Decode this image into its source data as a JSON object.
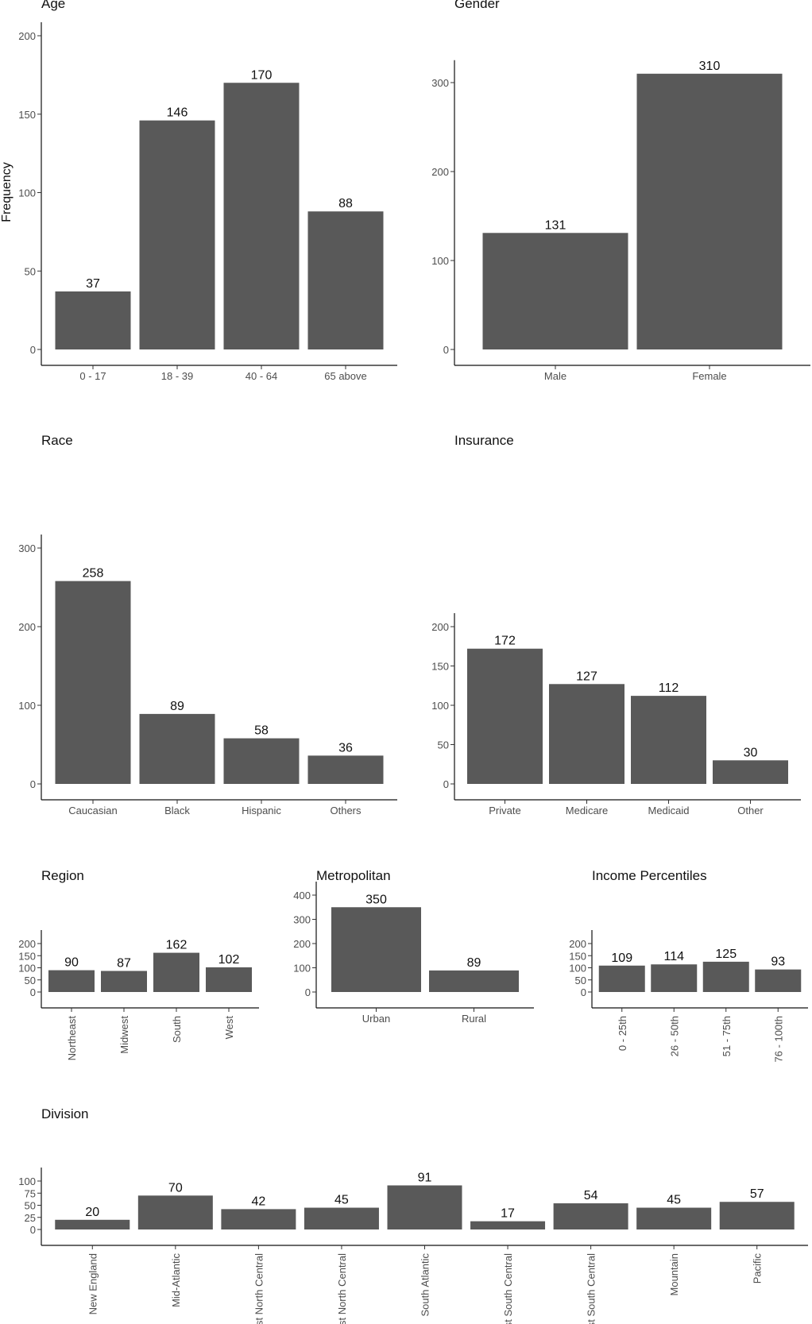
{
  "y_axis_label": "Frequency",
  "chart_data": [
    {
      "id": "age",
      "type": "bar",
      "title": "Age",
      "categories": [
        "0 - 17",
        "18 - 39",
        "40 - 64",
        "65 above"
      ],
      "values": [
        37,
        146,
        170,
        88
      ],
      "ylim": [
        0,
        200
      ],
      "yticks": [
        0,
        50,
        100,
        150,
        200
      ]
    },
    {
      "id": "gender",
      "type": "bar",
      "title": "Gender",
      "categories": [
        "Male",
        "Female"
      ],
      "values": [
        131,
        310
      ],
      "ylim": [
        0,
        310
      ],
      "yticks": [
        0,
        100,
        200,
        300
      ]
    },
    {
      "id": "race",
      "type": "bar",
      "title": "Race",
      "categories": [
        "Caucasian",
        "Black",
        "Hispanic",
        "Others"
      ],
      "values": [
        258,
        89,
        58,
        36
      ],
      "ylim": [
        0,
        300
      ],
      "yticks": [
        0,
        100,
        200,
        300
      ]
    },
    {
      "id": "insurance",
      "type": "bar",
      "title": "Insurance",
      "categories": [
        "Private",
        "Medicare",
        "Medicaid",
        "Other"
      ],
      "values": [
        172,
        127,
        112,
        30
      ],
      "ylim": [
        0,
        200
      ],
      "yticks": [
        0,
        50,
        100,
        150,
        200
      ]
    },
    {
      "id": "region",
      "type": "bar",
      "title": "Region",
      "categories": [
        "Northeast",
        "Midwest",
        "South",
        "West"
      ],
      "values": [
        90,
        87,
        162,
        102
      ],
      "ylim": [
        0,
        200
      ],
      "yticks": [
        0,
        50,
        100,
        150,
        200
      ]
    },
    {
      "id": "metropolitan",
      "type": "bar",
      "title": "Metropolitan",
      "categories": [
        "Urban",
        "Rural"
      ],
      "values": [
        350,
        89
      ],
      "ylim": [
        0,
        400
      ],
      "yticks": [
        0,
        100,
        200,
        300,
        400
      ]
    },
    {
      "id": "income",
      "type": "bar",
      "title": "Income Percentiles",
      "categories": [
        "0 - 25th",
        "26 - 50th",
        "51 - 75th",
        "76 - 100th"
      ],
      "values": [
        109,
        114,
        125,
        93
      ],
      "ylim": [
        0,
        200
      ],
      "yticks": [
        0,
        50,
        100,
        150,
        200
      ]
    },
    {
      "id": "division",
      "type": "bar",
      "title": "Division",
      "categories": [
        "New England",
        "Mid-Atlantic",
        "East North Central",
        "West North Central",
        "South Atlantic",
        "East South Central",
        "West South Central",
        "Mountain",
        "Pacific"
      ],
      "values": [
        20,
        70,
        42,
        45,
        91,
        17,
        54,
        45,
        57
      ],
      "ylim": [
        0,
        100
      ],
      "yticks": [
        0,
        25,
        50,
        75,
        100
      ]
    }
  ]
}
